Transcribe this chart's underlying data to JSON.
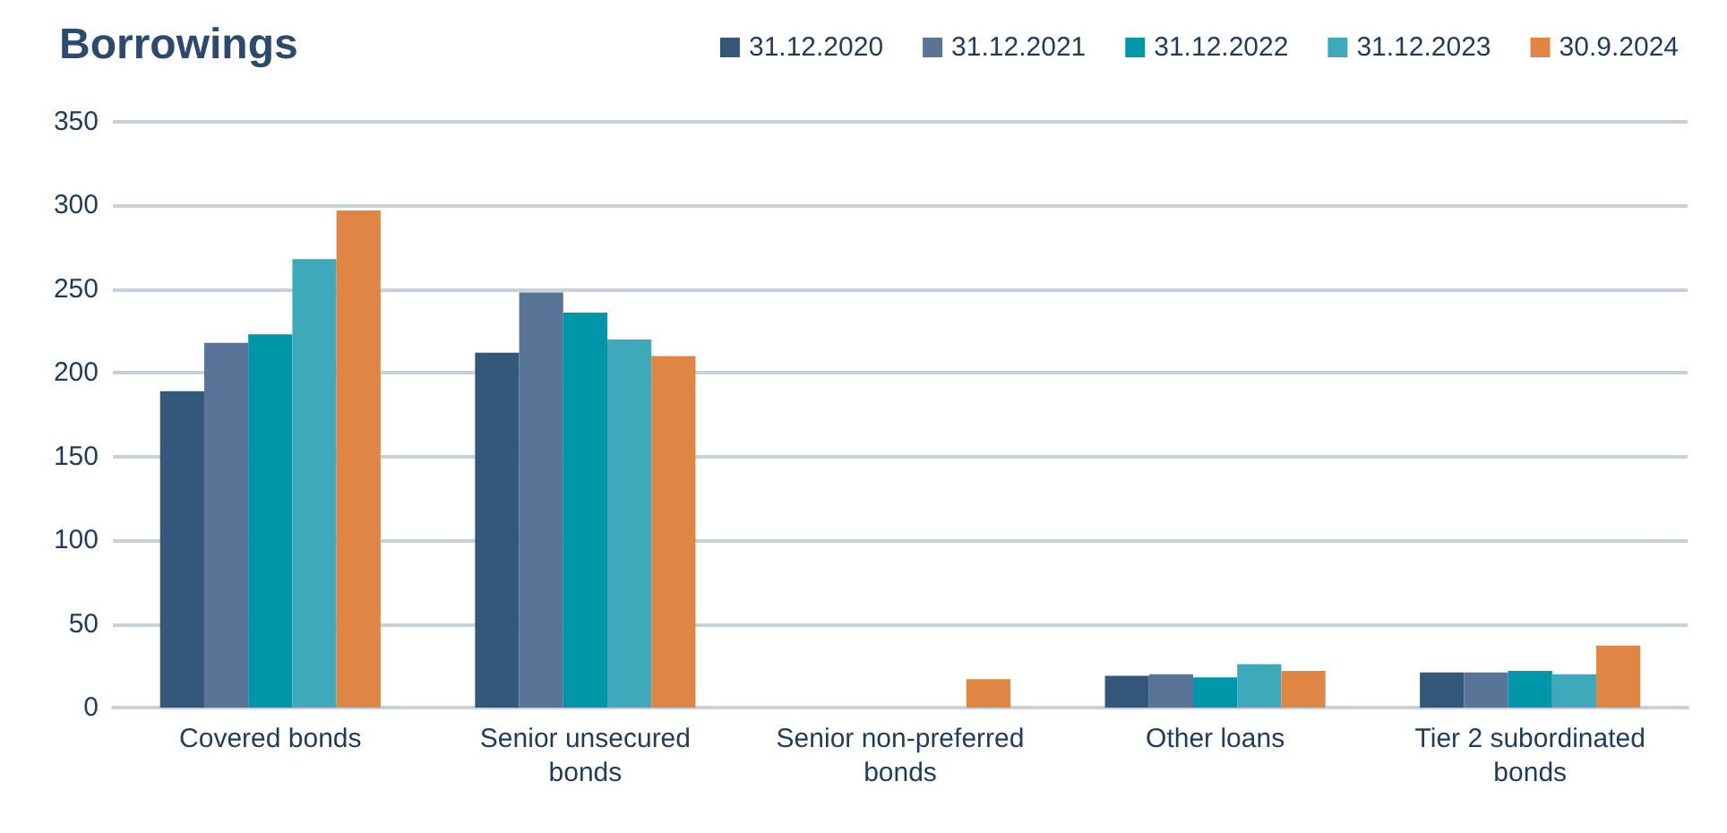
{
  "chart_data": {
    "type": "bar",
    "title": "Borrowings",
    "categories": [
      "Covered bonds",
      "Senior unsecured\nbonds",
      "Senior non-preferred\nbonds",
      "Other loans",
      "Tier 2 subordinated\nbonds"
    ],
    "series": [
      {
        "name": "31.12.2020",
        "color": "#34587a",
        "values": [
          189,
          212,
          null,
          19,
          21
        ]
      },
      {
        "name": "31.12.2021",
        "color": "#587497",
        "values": [
          218,
          248,
          null,
          20,
          21
        ]
      },
      {
        "name": "31.12.2022",
        "color": "#0096aa",
        "values": [
          223,
          236,
          null,
          18,
          22
        ]
      },
      {
        "name": "31.12.2023",
        "color": "#3fa9bc",
        "values": [
          268,
          220,
          null,
          26,
          20
        ]
      },
      {
        "name": "30.9.2024",
        "color": "#e08644",
        "values": [
          297,
          210,
          17,
          22,
          37
        ]
      }
    ],
    "ylim": [
      0,
      350
    ],
    "yticks": [
      0,
      50,
      100,
      150,
      200,
      250,
      300,
      350
    ],
    "grid": "y",
    "legend": "top right"
  }
}
